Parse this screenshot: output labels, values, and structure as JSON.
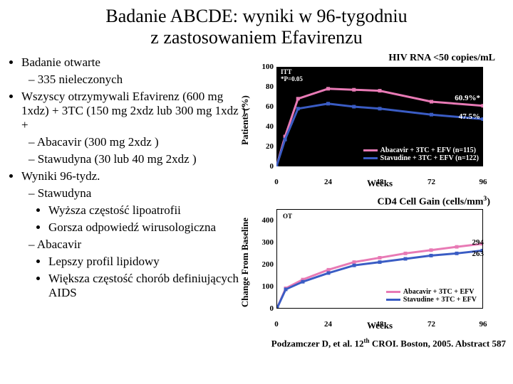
{
  "title_line1": "Badanie ABCDE: wyniki w 96-tygodniu",
  "title_line2": "z zastosowaniem Efavirenzu",
  "bullets": {
    "b1": "Badanie otwarte",
    "b1_1": "335 nieleczonych",
    "b2": "Wszyscy otrzymywali Efavirenz (600 mg 1xdz) + 3TC (150 mg 2xdz lub 300 mg 1xdz ) +",
    "b2_1": "Abacavir (300 mg 2xdz )",
    "b2_2": "Stawudyna (30 lub 40 mg 2xdz )",
    "b3": "Wyniki 96-tydz.",
    "b3_1": "Stawudyna",
    "b3_1_1": "Wyższa częstość lipoatrofii",
    "b3_1_2": "Gorsza odpowiedź wirusologiczna",
    "b3_2": "Abacavir",
    "b3_2_1": "Lepszy profil lipidowy",
    "b3_2_2": "Większa częstość chorób definiujących AIDS"
  },
  "chart1": {
    "title": "HIV RNA <50 copies/mL",
    "ylabel": "Patients (%)",
    "xlabel": "Weeks",
    "bg": "#000000",
    "yticks": [
      0,
      20,
      40,
      60,
      80,
      100
    ],
    "xticks": [
      0,
      24,
      48,
      72,
      96
    ],
    "ylim": [
      0,
      100
    ],
    "xlim": [
      0,
      96
    ],
    "series": [
      {
        "name": "Abacavir + 3TC + EFV (n=115)",
        "color": "#e87ab5",
        "x": [
          0,
          4,
          10,
          24,
          36,
          48,
          72,
          96
        ],
        "y": [
          0,
          30,
          68,
          78,
          77,
          76,
          65,
          60.9
        ]
      },
      {
        "name": "Stavudine + 3TC + EFV (n=122)",
        "color": "#3a5cc4",
        "x": [
          0,
          4,
          10,
          24,
          36,
          48,
          72,
          96
        ],
        "y": [
          0,
          27,
          58,
          63,
          60,
          58,
          52,
          47.5
        ]
      }
    ],
    "itt": "ITT",
    "itt2": "*P=0.05",
    "annot1": "60.9%*",
    "annot2": "47.5%",
    "line_width": 3
  },
  "chart2": {
    "title": "CD4 Cell Gain (cells/mm",
    "title_sup": "3",
    "title_end": ")",
    "ylabel": "Change From Baseline",
    "xlabel": "Weeks",
    "yticks": [
      0,
      100,
      200,
      300,
      400
    ],
    "xticks": [
      0,
      24,
      48,
      72,
      96
    ],
    "ylim": [
      0,
      450
    ],
    "xlim": [
      0,
      96
    ],
    "series": [
      {
        "name": "Abacavir + 3TC + EFV",
        "color": "#e87ab5",
        "x": [
          0,
          4,
          12,
          24,
          36,
          48,
          60,
          72,
          84,
          96
        ],
        "y": [
          0,
          90,
          130,
          175,
          210,
          230,
          250,
          265,
          280,
          294
        ]
      },
      {
        "name": "Stavudine + 3TC + EFV",
        "color": "#3a5cc4",
        "x": [
          0,
          4,
          12,
          24,
          36,
          48,
          60,
          72,
          84,
          96
        ],
        "y": [
          0,
          85,
          120,
          160,
          195,
          210,
          225,
          240,
          250,
          263
        ]
      }
    ],
    "ot": "OT",
    "annot1": "294",
    "annot2": "263",
    "line_width": 3
  },
  "citation_pre": "Podzamczer D, et al. 12",
  "citation_sup": "th",
  "citation_post": " CROI. Boston, 2005. Abstract 587"
}
